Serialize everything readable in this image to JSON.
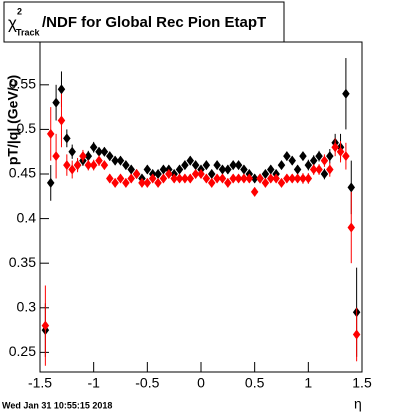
{
  "chart_data": {
    "type": "errorbar",
    "title": {
      "symbol": "χ",
      "superscript": "2",
      "subscript": "Track",
      "text": "/NDF for Global Rec Pion EtapT"
    },
    "y_label": "pT/|q| (GeV/c)",
    "x_label": "η",
    "footer": "Wed Jan 31 10:55:15 2018",
    "x": [
      -1.45,
      -1.4,
      -1.35,
      -1.3,
      -1.25,
      -1.2,
      -1.15,
      -1.1,
      -1.05,
      -1,
      -0.95,
      -0.9,
      -0.85,
      -0.8,
      -0.75,
      -0.7,
      -0.65,
      -0.6,
      -0.55,
      -0.5,
      -0.45,
      -0.4,
      -0.35,
      -0.3,
      -0.25,
      -0.2,
      -0.15,
      -0.1,
      -0.05,
      0,
      0.05,
      0.1,
      0.15,
      0.2,
      0.25,
      0.3,
      0.35,
      0.4,
      0.45,
      0.5,
      0.55,
      0.6,
      0.65,
      0.7,
      0.75,
      0.8,
      0.85,
      0.9,
      0.95,
      1,
      1.05,
      1.1,
      1.15,
      1.2,
      1.25,
      1.3,
      1.35,
      1.4,
      1.45
    ],
    "series": [
      {
        "color": "#000000",
        "values": [
          0.275,
          0.44,
          0.53,
          0.545,
          0.49,
          0.475,
          0.46,
          0.465,
          0.47,
          0.48,
          0.475,
          0.475,
          0.47,
          0.465,
          0.465,
          0.46,
          0.455,
          0.45,
          0.445,
          0.455,
          0.45,
          0.45,
          0.455,
          0.455,
          0.45,
          0.455,
          0.46,
          0.465,
          0.46,
          0.455,
          0.46,
          0.45,
          0.46,
          0.455,
          0.455,
          0.46,
          0.46,
          0.455,
          0.45,
          0.445,
          0.445,
          0.45,
          0.455,
          0.45,
          0.46,
          0.47,
          0.465,
          0.455,
          0.47,
          0.46,
          0.465,
          0.47,
          0.45,
          0.47,
          0.485,
          0.48,
          0.54,
          0.435,
          0.295
        ],
        "errors": [
          0.03,
          0.02,
          0.02,
          0.02,
          0.01,
          0.008,
          0.006,
          0.006,
          0.006,
          0.006,
          0.005,
          0.005,
          0.005,
          0.005,
          0.005,
          0.005,
          0.005,
          0.005,
          0.005,
          0.005,
          0.005,
          0.005,
          0.005,
          0.005,
          0.005,
          0.005,
          0.005,
          0.005,
          0.005,
          0.005,
          0.005,
          0.005,
          0.005,
          0.005,
          0.005,
          0.005,
          0.005,
          0.005,
          0.005,
          0.005,
          0.005,
          0.005,
          0.005,
          0.005,
          0.005,
          0.005,
          0.005,
          0.005,
          0.005,
          0.006,
          0.006,
          0.006,
          0.006,
          0.008,
          0.01,
          0.015,
          0.04,
          0.03,
          0.05
        ]
      },
      {
        "color": "#ff0000",
        "values": [
          0.28,
          0.495,
          0.47,
          0.51,
          0.46,
          0.455,
          0.46,
          0.47,
          0.46,
          0.46,
          0.465,
          0.46,
          0.445,
          0.44,
          0.445,
          0.44,
          0.445,
          0.45,
          0.44,
          0.44,
          0.445,
          0.44,
          0.445,
          0.45,
          0.445,
          0.445,
          0.445,
          0.445,
          0.45,
          0.45,
          0.445,
          0.44,
          0.445,
          0.445,
          0.44,
          0.445,
          0.445,
          0.445,
          0.445,
          0.43,
          0.445,
          0.44,
          0.445,
          0.445,
          0.44,
          0.445,
          0.445,
          0.445,
          0.445,
          0.445,
          0.455,
          0.455,
          0.465,
          0.455,
          0.48,
          0.475,
          0.47,
          0.39,
          0.27
        ],
        "errors": [
          0.045,
          0.03,
          0.025,
          0.03,
          0.012,
          0.01,
          0.008,
          0.007,
          0.006,
          0.006,
          0.006,
          0.005,
          0.005,
          0.005,
          0.005,
          0.005,
          0.005,
          0.005,
          0.005,
          0.005,
          0.005,
          0.005,
          0.005,
          0.005,
          0.005,
          0.005,
          0.005,
          0.005,
          0.005,
          0.005,
          0.005,
          0.005,
          0.005,
          0.005,
          0.005,
          0.005,
          0.005,
          0.005,
          0.005,
          0.005,
          0.005,
          0.005,
          0.005,
          0.005,
          0.005,
          0.005,
          0.005,
          0.005,
          0.006,
          0.006,
          0.006,
          0.006,
          0.007,
          0.008,
          0.01,
          0.012,
          0.015,
          0.04,
          0.03
        ]
      }
    ],
    "xlim": [
      -1.5,
      1.5
    ],
    "xticks": [
      -1.5,
      -1,
      -0.5,
      0,
      0.5,
      1,
      1.5
    ],
    "ylim": [
      0.228,
      0.598
    ],
    "yticks": [
      0.25,
      0.3,
      0.35,
      0.4,
      0.45,
      0.5,
      0.55
    ]
  }
}
